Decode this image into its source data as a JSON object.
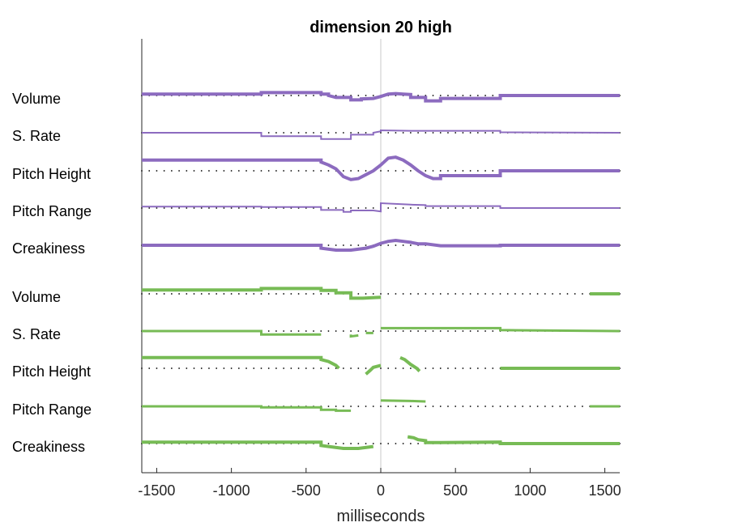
{
  "chart_data": {
    "type": "line",
    "title": "dimension 20 high",
    "xlabel": "milliseconds",
    "ylabel": "",
    "xlim": [
      -1600,
      1600
    ],
    "xticks": [
      -1500,
      -1000,
      -500,
      0,
      500,
      1000,
      1500
    ],
    "xtick_labels": [
      "-1500",
      "-1000",
      "-500",
      "0",
      "500",
      "1000",
      "1500"
    ],
    "zero_line": true,
    "grid": false,
    "colors": {
      "group1": "#8c6bbf",
      "group2": "#77bb55",
      "baseline_dots": "#000000",
      "zero_line": "#c8c8c8"
    },
    "groups": [
      {
        "color": "#8c6bbf",
        "series": [
          {
            "name": "Volume",
            "width": 4,
            "points": [
              [
                -1600,
                0.15
              ],
              [
                -800,
                0.15
              ],
              [
                -800,
                0.3
              ],
              [
                -400,
                0.3
              ],
              [
                -400,
                0.15
              ],
              [
                -350,
                0.15
              ],
              [
                -350,
                0
              ],
              [
                -300,
                -0.2
              ],
              [
                -200,
                -0.2
              ],
              [
                -200,
                -0.45
              ],
              [
                -130,
                -0.45
              ],
              [
                -130,
                -0.35
              ],
              [
                -50,
                -0.3
              ],
              [
                0,
                -0.1
              ],
              [
                50,
                0.15
              ],
              [
                100,
                0.2
              ],
              [
                150,
                0.15
              ],
              [
                200,
                0.1
              ],
              [
                200,
                -0.2
              ],
              [
                300,
                -0.2
              ],
              [
                300,
                -0.55
              ],
              [
                400,
                -0.55
              ],
              [
                400,
                -0.3
              ],
              [
                800,
                -0.3
              ],
              [
                800,
                0
              ],
              [
                1600,
                0
              ]
            ]
          },
          {
            "name": "S. Rate",
            "width": 2,
            "points": [
              [
                -1600,
                0
              ],
              [
                -800,
                0
              ],
              [
                -800,
                -0.35
              ],
              [
                -400,
                -0.35
              ],
              [
                -400,
                -0.65
              ],
              [
                -200,
                -0.65
              ],
              [
                -200,
                -0.2
              ],
              [
                -50,
                -0.2
              ],
              [
                -50,
                0
              ],
              [
                0,
                0.15
              ],
              [
                0,
                0.25
              ],
              [
                200,
                0.2
              ],
              [
                800,
                0.2
              ],
              [
                800,
                0.05
              ],
              [
                1600,
                0
              ]
            ]
          },
          {
            "name": "Pitch Height",
            "width": 4,
            "points": [
              [
                -1600,
                1.1
              ],
              [
                -400,
                1.1
              ],
              [
                -400,
                0.9
              ],
              [
                -350,
                0.6
              ],
              [
                -300,
                0.2
              ],
              [
                -250,
                -0.6
              ],
              [
                -200,
                -0.9
              ],
              [
                -150,
                -0.8
              ],
              [
                -100,
                -0.4
              ],
              [
                -50,
                0
              ],
              [
                0,
                0.6
              ],
              [
                50,
                1.3
              ],
              [
                100,
                1.4
              ],
              [
                150,
                1.1
              ],
              [
                200,
                0.6
              ],
              [
                250,
                0
              ],
              [
                300,
                -0.5
              ],
              [
                350,
                -0.8
              ],
              [
                400,
                -0.8
              ],
              [
                400,
                -0.5
              ],
              [
                800,
                -0.5
              ],
              [
                800,
                0
              ],
              [
                1600,
                0
              ]
            ]
          },
          {
            "name": "Pitch Range",
            "width": 2,
            "points": [
              [
                -1600,
                0.15
              ],
              [
                -800,
                0.15
              ],
              [
                -800,
                0.1
              ],
              [
                -400,
                0.1
              ],
              [
                -400,
                -0.2
              ],
              [
                -250,
                -0.2
              ],
              [
                -250,
                -0.4
              ],
              [
                -200,
                -0.4
              ],
              [
                -200,
                -0.25
              ],
              [
                -50,
                -0.25
              ],
              [
                0,
                -0.35
              ],
              [
                0,
                0.5
              ],
              [
                200,
                0.35
              ],
              [
                300,
                0.3
              ],
              [
                300,
                0.2
              ],
              [
                800,
                0.2
              ],
              [
                800,
                0
              ],
              [
                1600,
                0
              ]
            ]
          },
          {
            "name": "Creakiness",
            "width": 4,
            "points": [
              [
                -1600,
                0
              ],
              [
                -400,
                0
              ],
              [
                -400,
                -0.3
              ],
              [
                -300,
                -0.5
              ],
              [
                -200,
                -0.5
              ],
              [
                -100,
                -0.3
              ],
              [
                -50,
                -0.1
              ],
              [
                0,
                0.2
              ],
              [
                50,
                0.4
              ],
              [
                100,
                0.5
              ],
              [
                150,
                0.4
              ],
              [
                200,
                0.3
              ],
              [
                250,
                0.15
              ],
              [
                300,
                0.15
              ],
              [
                400,
                -0.05
              ],
              [
                800,
                -0.05
              ],
              [
                800,
                0
              ],
              [
                1600,
                0
              ]
            ]
          }
        ]
      },
      {
        "color": "#77bb55",
        "series": [
          {
            "name": "Volume",
            "width": 4,
            "segments": [
              [
                [
                  -1600,
                  0.4
                ],
                [
                  -800,
                  0.4
                ],
                [
                  -800,
                  0.55
                ],
                [
                  -400,
                  0.55
                ],
                [
                  -400,
                  0.35
                ],
                [
                  -300,
                  0.35
                ],
                [
                  -300,
                  0.1
                ],
                [
                  -200,
                  0.1
                ],
                [
                  -200,
                  -0.45
                ],
                [
                  -120,
                  -0.45
                ],
                [
                  0,
                  -0.35
                ]
              ],
              [
                [
                  1400,
                  0
                ],
                [
                  1600,
                  0
                ]
              ]
            ]
          },
          {
            "name": "S. Rate",
            "width": 3,
            "segments": [
              [
                [
                  -1600,
                  0
                ],
                [
                  -800,
                  0
                ],
                [
                  -800,
                  -0.35
                ],
                [
                  -400,
                  -0.35
                ]
              ],
              [
                [
                  -200,
                  -0.35
                ],
                [
                  -200,
                  -0.55
                ],
                [
                  -150,
                  -0.45
                ]
              ],
              [
                [
                  -100,
                  -0.2
                ],
                [
                  -50,
                  -0.2
                ]
              ],
              [
                [
                  0,
                  0.3
                ],
                [
                  200,
                  0.3
                ],
                [
                  800,
                  0.3
                ],
                [
                  800,
                  0.1
                ],
                [
                  1600,
                  0
                ]
              ]
            ]
          },
          {
            "name": "Pitch Height",
            "width": 4,
            "segments": [
              [
                [
                  -1600,
                  1.1
                ],
                [
                  -400,
                  1.1
                ],
                [
                  -400,
                  0.9
                ],
                [
                  -350,
                  0.7
                ],
                [
                  -300,
                  0.3
                ],
                [
                  -280,
                  0
                ]
              ],
              [
                [
                  -100,
                  -0.6
                ],
                [
                  -70,
                  -0.2
                ],
                [
                  -50,
                  0.1
                ],
                [
                  0,
                  0.3
                ]
              ],
              [
                [
                  130,
                  1.1
                ],
                [
                  160,
                  0.9
                ],
                [
                  200,
                  0.4
                ],
                [
                  240,
                  0
                ],
                [
                  260,
                  -0.3
                ]
              ],
              [
                [
                  800,
                  0
                ],
                [
                  1600,
                  0
                ]
              ]
            ]
          },
          {
            "name": "Pitch Range",
            "width": 3,
            "segments": [
              [
                [
                  -1600,
                  0
                ],
                [
                  -800,
                  0
                ],
                [
                  -800,
                  -0.1
                ],
                [
                  -400,
                  -0.1
                ],
                [
                  -400,
                  -0.35
                ],
                [
                  -300,
                  -0.35
                ],
                [
                  -300,
                  -0.45
                ],
                [
                  -200,
                  -0.45
                ]
              ],
              [
                [
                  0,
                  0.6
                ],
                [
                  200,
                  0.55
                ],
                [
                  300,
                  0.5
                ]
              ],
              [
                [
                  1400,
                  0
                ],
                [
                  1600,
                  0
                ]
              ]
            ]
          },
          {
            "name": "Creakiness",
            "width": 4,
            "segments": [
              [
                [
                  -1600,
                  0.15
                ],
                [
                  -400,
                  0.15
                ],
                [
                  -400,
                  -0.2
                ],
                [
                  -350,
                  -0.3
                ],
                [
                  -250,
                  -0.5
                ],
                [
                  -150,
                  -0.5
                ],
                [
                  -50,
                  -0.3
                ]
              ],
              [
                [
                  180,
                  0.7
                ],
                [
                  220,
                  0.6
                ],
                [
                  250,
                  0.4
                ],
                [
                  300,
                  0.3
                ],
                [
                  300,
                  0.1
                ],
                [
                  400,
                  0.1
                ],
                [
                  800,
                  0.15
                ],
                [
                  800,
                  0
                ],
                [
                  1600,
                  0
                ]
              ]
            ]
          }
        ]
      }
    ]
  }
}
